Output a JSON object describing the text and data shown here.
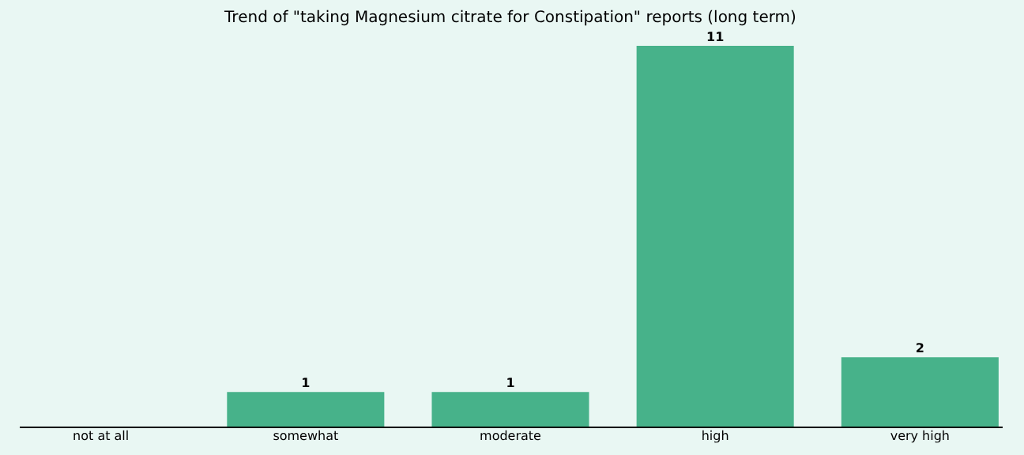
{
  "chart_data": {
    "type": "bar",
    "title": "Trend of \"taking Magnesium citrate for Constipation\" reports (long term)",
    "categories": [
      "not at all",
      "somewhat",
      "moderate",
      "high",
      "very high"
    ],
    "values": [
      0,
      1,
      1,
      11,
      2
    ],
    "value_labels": [
      null,
      "1",
      "1",
      "11",
      "2"
    ],
    "color": "#47b28a",
    "grid": false,
    "tick_labels": "x"
  }
}
